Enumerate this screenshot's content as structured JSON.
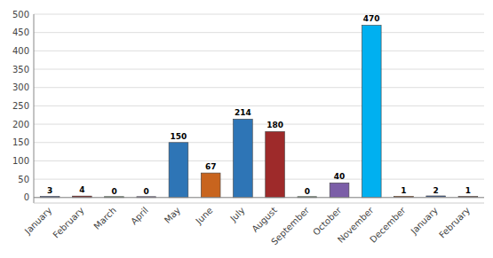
{
  "chart_data": {
    "type": "bar",
    "categories": [
      "January",
      "February",
      "March",
      "April",
      "May",
      "June",
      "July",
      "August",
      "September",
      "October",
      "November",
      "December",
      "January",
      "February"
    ],
    "values": [
      3,
      4,
      0,
      0,
      150,
      67,
      214,
      180,
      0,
      40,
      470,
      1,
      2,
      1
    ],
    "colors": [
      "#2E4FA3",
      "#8B1A1A",
      "#3A7A3A",
      "#6B4EA8",
      "#2E75B6",
      "#C8641E",
      "#2E75B6",
      "#9E2A2A",
      "#3A7A3A",
      "#7B5EA7",
      "#00B0F0",
      "#C8641E",
      "#4472C4",
      "#A07060"
    ],
    "ylim": [
      -15,
      500
    ],
    "yticks": [
      0,
      50,
      100,
      150,
      200,
      250,
      300,
      350,
      400,
      450,
      500
    ],
    "grid": true,
    "data_labels": true
  }
}
